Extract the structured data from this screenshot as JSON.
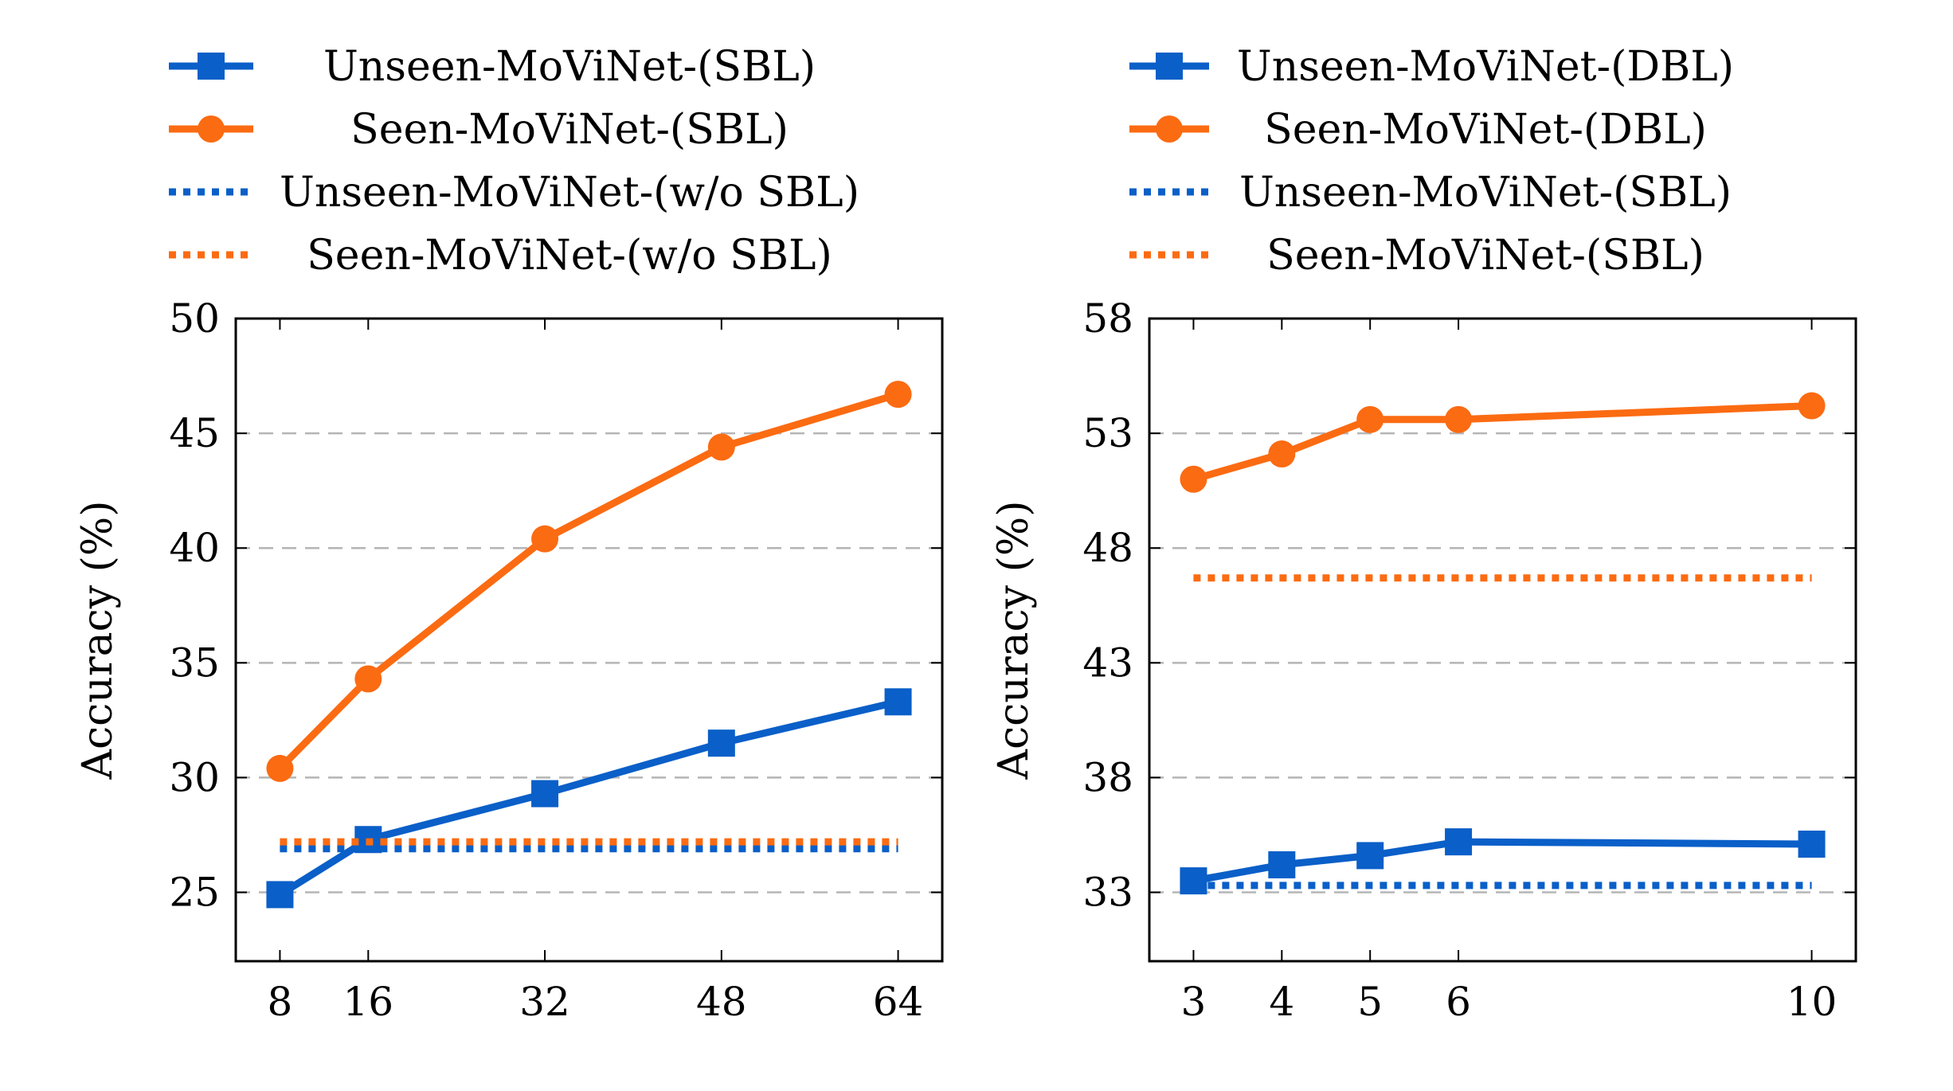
{
  "chart_data": [
    {
      "type": "line",
      "x": [
        8,
        16,
        32,
        48,
        64
      ],
      "xlim": [
        4,
        68
      ],
      "ylim": [
        22,
        50
      ],
      "yticks": [
        25,
        30,
        35,
        40,
        45,
        50
      ],
      "xlabel": "",
      "ylabel": "Accuracy (%)",
      "grid": "horizontal dashed",
      "legend_position": "top",
      "series": [
        {
          "name": "Unseen-MoViNet-(SBL)",
          "style": "solid",
          "marker": "square",
          "color": "#0a5fc8",
          "values": [
            24.9,
            27.3,
            29.3,
            31.5,
            33.3
          ]
        },
        {
          "name": "Seen-MoViNet-(SBL)",
          "style": "solid",
          "marker": "circle",
          "color": "#fb6b12",
          "values": [
            30.4,
            34.3,
            40.4,
            44.4,
            46.7
          ]
        },
        {
          "name": "Unseen-MoViNet-(w/o SBL)",
          "style": "dotted",
          "marker": "none",
          "color": "#0a5fc8",
          "values": [
            26.9,
            26.9,
            26.9,
            26.9,
            26.9
          ]
        },
        {
          "name": "Seen-MoViNet-(w/o SBL)",
          "style": "dotted",
          "marker": "none",
          "color": "#fb6b12",
          "values": [
            27.2,
            27.2,
            27.2,
            27.2,
            27.2
          ]
        }
      ]
    },
    {
      "type": "line",
      "x": [
        3,
        4,
        5,
        6,
        10
      ],
      "xlim": [
        2.5,
        10.5
      ],
      "ylim": [
        30,
        58
      ],
      "yticks": [
        33,
        38,
        43,
        48,
        53,
        58
      ],
      "xlabel": "",
      "ylabel": "Accuracy (%)",
      "grid": "horizontal dashed",
      "legend_position": "top",
      "series": [
        {
          "name": "Unseen-MoViNet-(DBL)",
          "style": "solid",
          "marker": "square",
          "color": "#0a5fc8",
          "values": [
            33.5,
            34.2,
            34.6,
            35.2,
            35.1
          ]
        },
        {
          "name": "Seen-MoViNet-(DBL)",
          "style": "solid",
          "marker": "circle",
          "color": "#fb6b12",
          "values": [
            51.0,
            52.1,
            53.6,
            53.6,
            54.2
          ]
        },
        {
          "name": "Unseen-MoViNet-(SBL)",
          "style": "dotted",
          "marker": "none",
          "color": "#0a5fc8",
          "values": [
            33.3,
            33.3,
            33.3,
            33.3,
            33.3
          ]
        },
        {
          "name": "Seen-MoViNet-(SBL)",
          "style": "dotted",
          "marker": "none",
          "color": "#fb6b12",
          "values": [
            46.7,
            46.7,
            46.7,
            46.7,
            46.7
          ]
        }
      ]
    }
  ]
}
